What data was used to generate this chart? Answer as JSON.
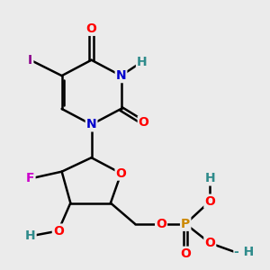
{
  "background_color": "#ebebeb",
  "bond_color": "#000000",
  "bond_width": 1.8,
  "atom_colors": {
    "O": "#ff0000",
    "N": "#0000cd",
    "F": "#cc00cc",
    "I": "#8b008b",
    "P": "#cc8800",
    "H": "#2e8b8b",
    "C": "#000000"
  },
  "font_size": 10
}
